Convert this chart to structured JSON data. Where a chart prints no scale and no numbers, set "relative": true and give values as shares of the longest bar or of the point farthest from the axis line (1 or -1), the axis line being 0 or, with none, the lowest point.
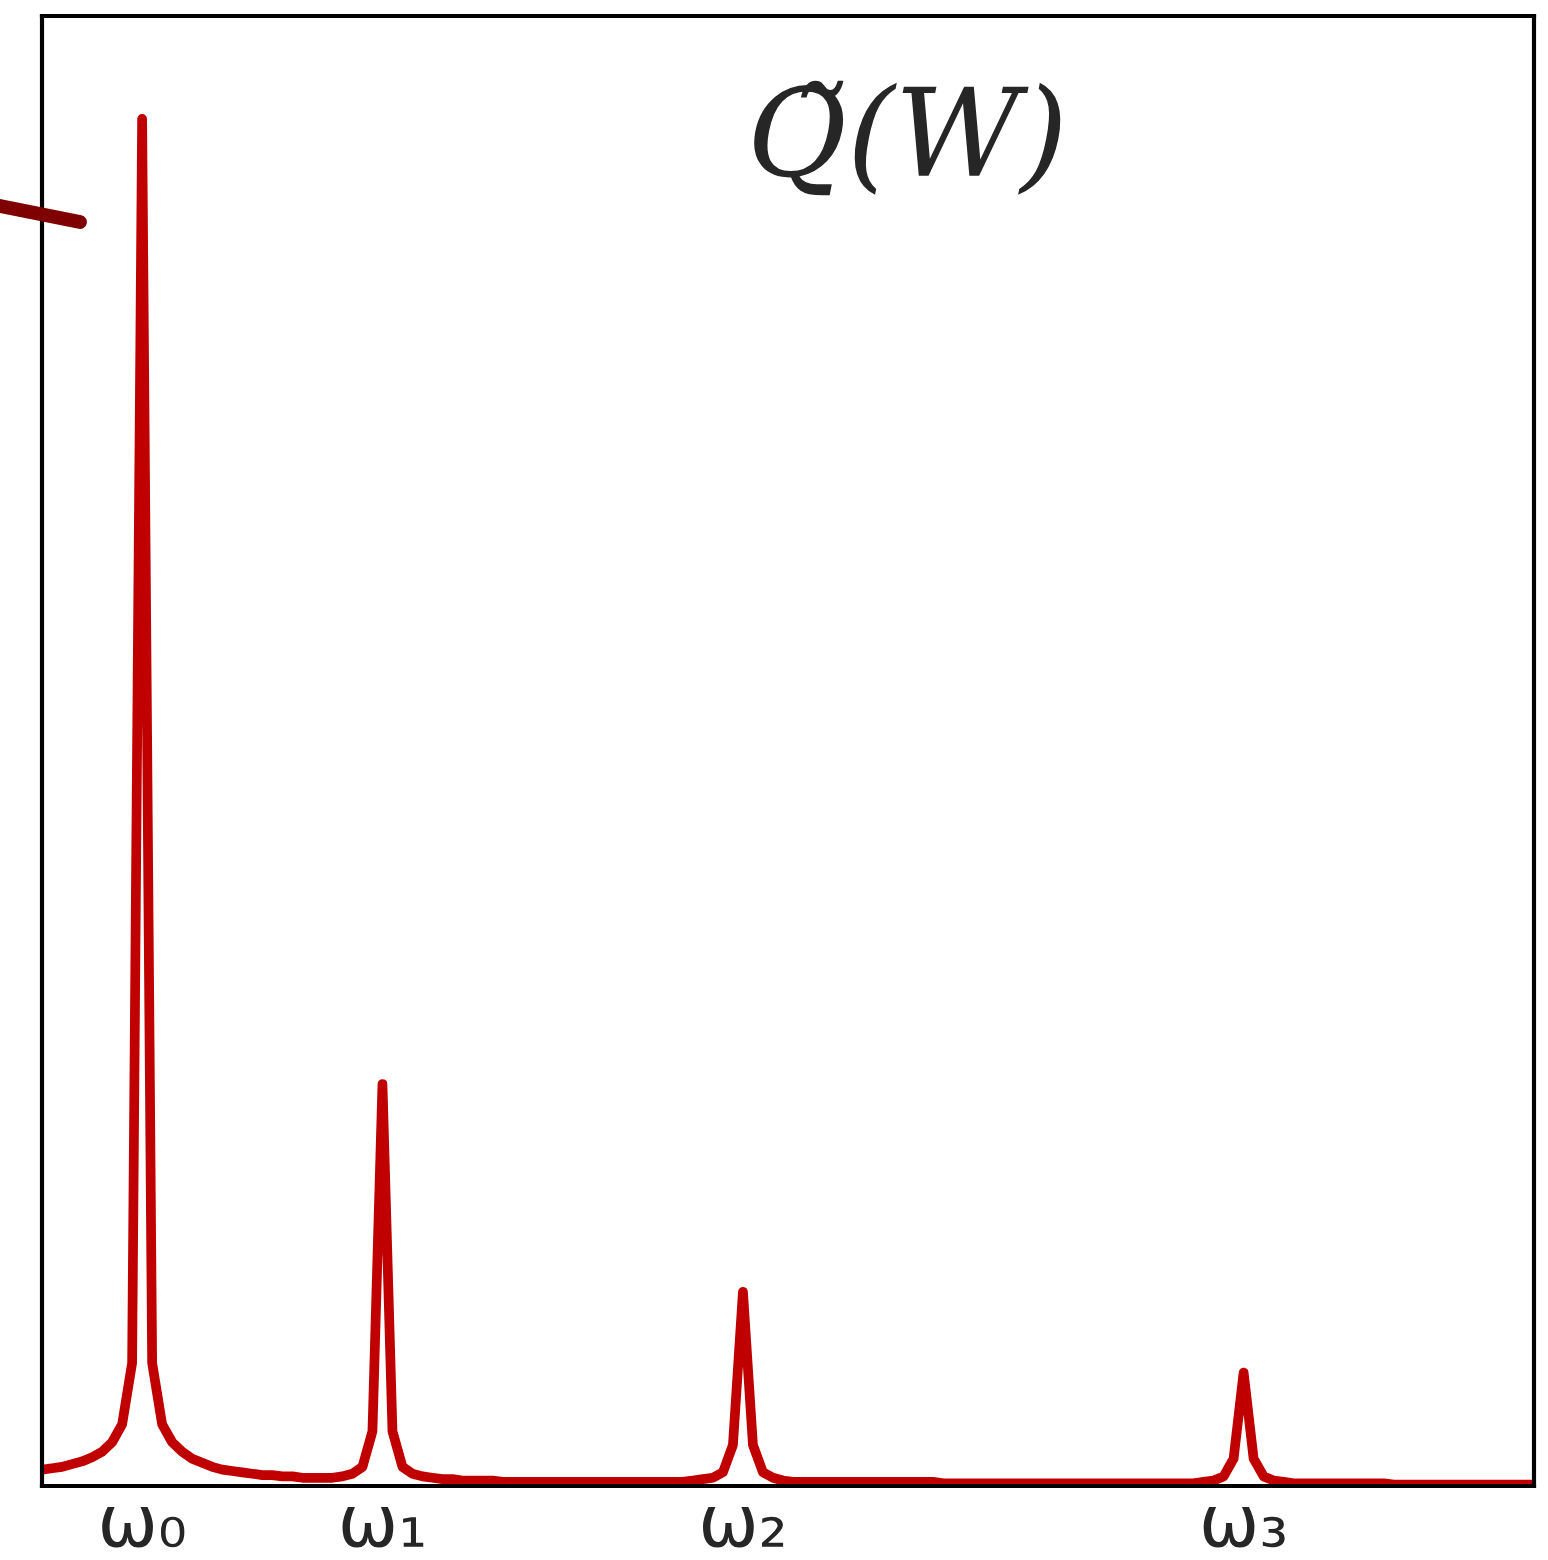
{
  "chart_data": {
    "type": "line",
    "title": "Q̃(W)",
    "relative": true,
    "categories": [
      null,
      null,
      null,
      null,
      null,
      null,
      null,
      null,
      null,
      null,
      "ω₀",
      null,
      null,
      null,
      null,
      null,
      null,
      null,
      null,
      null,
      null,
      null,
      null,
      null,
      null,
      null,
      null,
      null,
      null,
      null,
      null,
      null,
      null,
      null,
      "ω₁",
      null,
      null,
      null,
      null,
      null,
      null,
      null,
      null,
      null,
      null,
      null,
      null,
      null,
      null,
      null,
      null,
      null,
      null,
      null,
      null,
      null,
      null,
      null,
      null,
      null,
      null,
      null,
      null,
      null,
      null,
      null,
      null,
      null,
      null,
      null,
      "ω₂",
      null,
      null,
      null,
      null,
      null,
      null,
      null,
      null,
      null,
      null,
      null,
      null,
      null,
      null,
      null,
      null,
      null,
      null,
      null,
      null,
      null,
      null,
      null,
      null,
      null,
      null,
      null,
      null,
      null,
      null,
      null,
      null,
      null,
      null,
      null,
      null,
      null,
      null,
      null,
      null,
      null,
      null,
      null,
      null,
      null,
      null,
      null,
      null,
      null,
      "ω₃",
      null,
      null,
      null,
      null,
      null,
      null,
      null,
      null,
      null,
      null,
      null,
      null,
      null,
      null,
      null,
      null,
      null,
      null,
      null,
      null,
      null,
      null,
      null,
      null,
      null,
      null,
      null,
      null,
      null
    ],
    "series": [
      {
        "color": "#c00000",
        "values": [
          0.012,
          0.013,
          0.014,
          0.016,
          0.018,
          0.021,
          0.025,
          0.032,
          0.045,
          0.09,
          1,
          0.09,
          0.045,
          0.032,
          0.025,
          0.02,
          0.017,
          0.014,
          0.012,
          0.011,
          0.01,
          0.009,
          0.008,
          0.008,
          0.007,
          0.007,
          0.006,
          0.006,
          0.006,
          0.006,
          0.007,
          0.009,
          0.014,
          0.04,
          0.294,
          0.04,
          0.014,
          0.009,
          0.007,
          0.006,
          0.005,
          0.005,
          0.004,
          0.004,
          0.004,
          0.004,
          0.003,
          0.003,
          0.003,
          0.003,
          0.003,
          0.003,
          0.003,
          0.003,
          0.003,
          0.003,
          0.003,
          0.003,
          0.003,
          0.003,
          0.003,
          0.003,
          0.003,
          0.003,
          0.003,
          0.004,
          0.005,
          0.006,
          0.01,
          0.03,
          0.142,
          0.03,
          0.01,
          0.006,
          0.004,
          0.003,
          0.003,
          0.003,
          0.003,
          0.003,
          0.003,
          0.003,
          0.003,
          0.003,
          0.003,
          0.003,
          0.003,
          0.003,
          0.003,
          0.003,
          0.002,
          0.002,
          0.002,
          0.002,
          0.002,
          0.002,
          0.002,
          0.002,
          0.002,
          0.002,
          0.002,
          0.002,
          0.002,
          0.002,
          0.002,
          0.002,
          0.002,
          0.002,
          0.002,
          0.002,
          0.002,
          0.002,
          0.002,
          0.002,
          0.002,
          0.002,
          0.003,
          0.004,
          0.007,
          0.02,
          0.083,
          0.02,
          0.007,
          0.004,
          0.003,
          0.002,
          0.002,
          0.002,
          0.002,
          0.002,
          0.002,
          0.002,
          0.002,
          0.002,
          0.002,
          0.001,
          0.001,
          0.001,
          0.001,
          0.001,
          0.001,
          0.001,
          0.001,
          0.001,
          0.001,
          0.001,
          0.001,
          0.001,
          0.001,
          0.001
        ]
      }
    ],
    "tick_labels": "x",
    "grid": false,
    "legend": false,
    "line_style": "solid",
    "marker": "none"
  }
}
